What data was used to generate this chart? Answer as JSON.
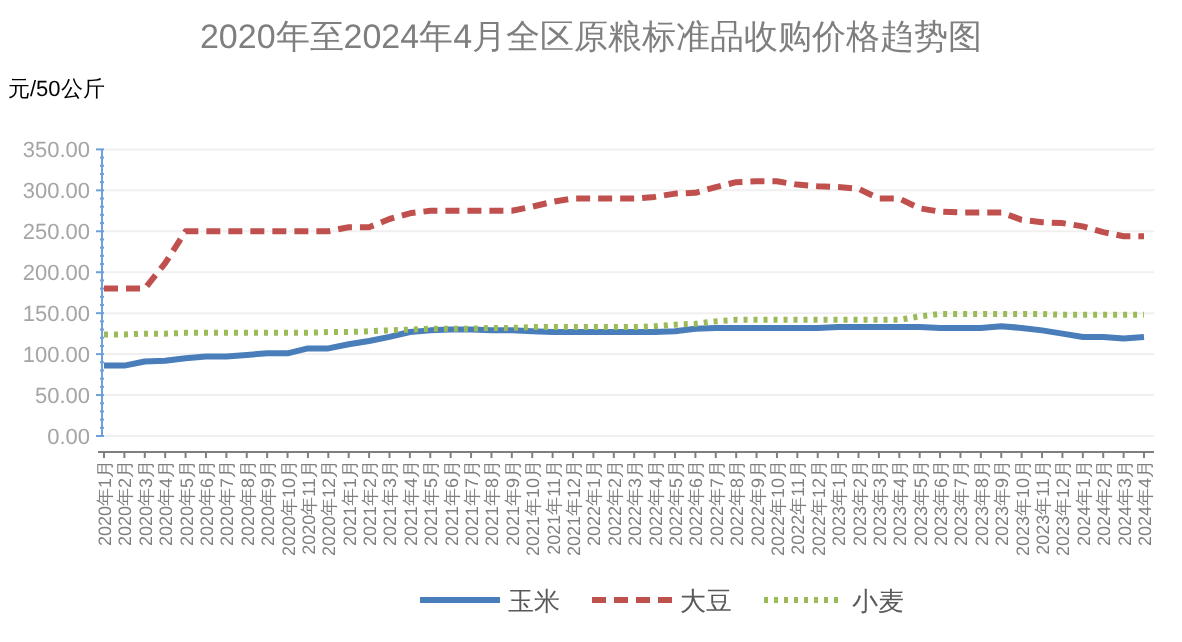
{
  "chart_data": {
    "type": "line",
    "title": "2020年至2024年4月全区原粮标准品收购价格趋势图",
    "ylabel": "元/50公斤",
    "categories": [
      "2020年1月",
      "2020年2月",
      "2020年3月",
      "2020年4月",
      "2020年5月",
      "2020年6月",
      "2020年7月",
      "2020年8月",
      "2020年9月",
      "2020年10月",
      "2020年11月",
      "2020年12月",
      "2021年1月",
      "2021年2月",
      "2021年3月",
      "2021年4月",
      "2021年5月",
      "2021年6月",
      "2021年7月",
      "2021年8月",
      "2021年9月",
      "2021年10月",
      "2021年11月",
      "2021年12月",
      "2022年1月",
      "2022年2月",
      "2022年3月",
      "2022年4月",
      "2022年5月",
      "2022年6月",
      "2022年7月",
      "2022年8月",
      "2022年9月",
      "2022年10月",
      "2022年11月",
      "2022年12月",
      "2023年1月",
      "2023年2月",
      "2023年3月",
      "2023年4月",
      "2023年5月",
      "2023年6月",
      "2023年7月",
      "2023年8月",
      "2023年9月",
      "2023年10月",
      "2023年11月",
      "2023年12月",
      "2024年1月",
      "2024年2月",
      "2024年3月",
      "2024年4月"
    ],
    "series": [
      {
        "name": "玉米",
        "color": "#4a7ebb",
        "line_style": "solid",
        "values": [
          86,
          86,
          91,
          92,
          95,
          97,
          97,
          99,
          101,
          101,
          107,
          107,
          112,
          116,
          121,
          127,
          129,
          130,
          130,
          129,
          129,
          128,
          127,
          127,
          127,
          127,
          127,
          127,
          128,
          131,
          132,
          132,
          132,
          132,
          132,
          132,
          133,
          133,
          133,
          133,
          133,
          132,
          132,
          132,
          134,
          132,
          129,
          125,
          121,
          121,
          119,
          121
        ]
      },
      {
        "name": "大豆",
        "color": "#c0504d",
        "line_style": "dashed",
        "values": [
          180,
          180,
          180,
          211,
          250,
          250,
          250,
          250,
          250,
          250,
          250,
          250,
          255,
          255,
          265,
          272,
          275,
          275,
          275,
          275,
          275,
          280,
          286,
          290,
          290,
          290,
          290,
          292,
          296,
          297,
          304,
          310,
          311,
          311,
          307,
          305,
          304,
          302,
          290,
          290,
          278,
          274,
          273,
          273,
          273,
          264,
          261,
          260,
          256,
          249,
          244,
          244
        ]
      },
      {
        "name": "小麦",
        "color": "#9bbb59",
        "line_style": "dotted",
        "values": [
          124,
          124,
          125,
          125,
          126,
          126,
          126,
          126,
          126,
          126,
          126,
          127,
          127,
          128,
          129,
          130,
          131,
          131,
          131,
          132,
          132,
          133,
          133,
          133,
          133,
          133,
          133,
          134,
          136,
          137,
          140,
          142,
          142,
          142,
          142,
          142,
          142,
          142,
          142,
          142,
          146,
          149,
          149,
          149,
          149,
          149,
          149,
          148,
          148,
          148,
          148,
          148
        ]
      }
    ],
    "ylim": [
      0,
      350
    ],
    "yticks": [
      {
        "value": 0,
        "label": "0.00"
      },
      {
        "value": 50,
        "label": "50.00"
      },
      {
        "value": 100,
        "label": "100.00"
      },
      {
        "value": 150,
        "label": "150.00"
      },
      {
        "value": 200,
        "label": "200.00"
      },
      {
        "value": 250,
        "label": "250.00"
      },
      {
        "value": 300,
        "label": "300.00"
      },
      {
        "value": 350,
        "label": "350.00"
      }
    ],
    "grid": "y",
    "legend": "bottom"
  }
}
